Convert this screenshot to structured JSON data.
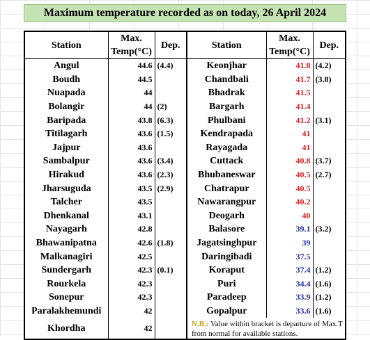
{
  "title": "Maximum temperature recorded as on today, 26 April 2024",
  "headers": {
    "station": "Station",
    "max_line1": "Max.",
    "max_line2": "Temp(°C)",
    "dep": "Dep."
  },
  "left": [
    {
      "station": "Angul",
      "max": "44.6",
      "dep": "(4.4)"
    },
    {
      "station": "Boudh",
      "max": "44.5",
      "dep": ""
    },
    {
      "station": "Nuapada",
      "max": "44",
      "dep": ""
    },
    {
      "station": "Bolangir",
      "max": "44",
      "dep": "(2)"
    },
    {
      "station": "Baripada",
      "max": "43.8",
      "dep": "(6.3)"
    },
    {
      "station": "Titilagarh",
      "max": "43.6",
      "dep": "(1.5)"
    },
    {
      "station": "Jajpur",
      "max": "43.6",
      "dep": ""
    },
    {
      "station": "Sambalpur",
      "max": "43.6",
      "dep": "(3.4)"
    },
    {
      "station": "Hirakud",
      "max": "43.6",
      "dep": "(2.3)"
    },
    {
      "station": "Jharsuguda",
      "max": "43.5",
      "dep": "(2.9)"
    },
    {
      "station": "Talcher",
      "max": "43.5",
      "dep": ""
    },
    {
      "station": "Dhenkanal",
      "max": "43.1",
      "dep": ""
    },
    {
      "station": "Nayagarh",
      "max": "42.8",
      "dep": ""
    },
    {
      "station": "Bhawanipatna",
      "max": "42.6",
      "dep": "(1.8)"
    },
    {
      "station": "Malkanagiri",
      "max": "42.5",
      "dep": ""
    },
    {
      "station": "Sundergarh",
      "max": "42.3",
      "dep": "(0.1)"
    },
    {
      "station": "Rourkela",
      "max": "42.3",
      "dep": ""
    },
    {
      "station": "Sonepur",
      "max": "42.3",
      "dep": ""
    },
    {
      "station": "Paralakhemundi",
      "max": "42",
      "dep": ""
    },
    {
      "station": "Khordha",
      "max": "42",
      "dep": ""
    }
  ],
  "right": [
    {
      "station": "Keonjhar",
      "max": "41.8",
      "dep": "(4.2)",
      "color": "#d32020"
    },
    {
      "station": "Chandbali",
      "max": "41.7",
      "dep": "(3.8)",
      "color": "#d32020"
    },
    {
      "station": "Bhadrak",
      "max": "41.5",
      "dep": "",
      "color": "#d32020"
    },
    {
      "station": "Bargarh",
      "max": "41.4",
      "dep": "",
      "color": "#d32020"
    },
    {
      "station": "Phulbani",
      "max": "41.2",
      "dep": "(3.1)",
      "color": "#d32020"
    },
    {
      "station": "Kendrapada",
      "max": "41",
      "dep": "",
      "color": "#d32020"
    },
    {
      "station": "Rayagada",
      "max": "41",
      "dep": "",
      "color": "#d32020"
    },
    {
      "station": "Cuttack",
      "max": "40.8",
      "dep": "(3.7)",
      "color": "#d32020"
    },
    {
      "station": "Bhubaneswar",
      "max": "40.5",
      "dep": "(2.7)",
      "color": "#d32020"
    },
    {
      "station": "Chatrapur",
      "max": "40.5",
      "dep": "",
      "color": "#d32020"
    },
    {
      "station": "Nawarangpur",
      "max": "40.2",
      "dep": "",
      "color": "#d32020"
    },
    {
      "station": "Deogarh",
      "max": "40",
      "dep": "",
      "color": "#d32020"
    },
    {
      "station": "Balasore",
      "max": "39.1",
      "dep": "(3.2)",
      "color": "#1f2fa3"
    },
    {
      "station": "Jagatsinghpur",
      "max": "39",
      "dep": "",
      "color": "#1f2fa3"
    },
    {
      "station": "Daringibadi",
      "max": "37.5",
      "dep": "",
      "color": "#1f2fa3"
    },
    {
      "station": "Koraput",
      "max": "37.4",
      "dep": "(1.2)",
      "color": "#1f2fa3"
    },
    {
      "station": "Puri",
      "max": "34.4",
      "dep": "(1.6)",
      "color": "#1f2fa3"
    },
    {
      "station": "Paradeep",
      "max": "33.9",
      "dep": "(1.2)",
      "color": "#1f2fa3"
    },
    {
      "station": "Gopalpur",
      "max": "33.6",
      "dep": "(1.6)",
      "color": "#1f2fa3"
    }
  ],
  "note": {
    "label": "N.B.:",
    "text": "Value within bracket is departure of Max.T from normal for available stations."
  },
  "colors": {
    "banner_bg": "#c6e3b3",
    "station_header": "#2c6cb0",
    "max_hot": "#d32020",
    "max_cool": "#1f2fa3",
    "note_label": "#c89a00"
  }
}
